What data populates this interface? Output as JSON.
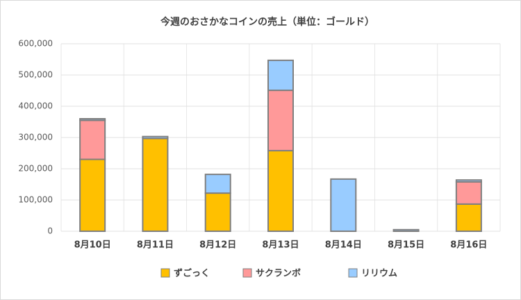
{
  "chart_data": {
    "type": "bar",
    "stacked": true,
    "title": "今週のおさかなコインの売上（単位：ゴールド）",
    "categories": [
      "8月10日",
      "8月11日",
      "8月12日",
      "8月13日",
      "8月14日",
      "8月15日",
      "8月16日"
    ],
    "series": [
      {
        "name": "ずごっく",
        "color": "#FFC000",
        "values": [
          230000,
          297000,
          122000,
          258000,
          0,
          0,
          87000
        ]
      },
      {
        "name": "サクランボ",
        "color": "#FF9999",
        "values": [
          125000,
          0,
          0,
          193000,
          0,
          0,
          71000
        ]
      },
      {
        "name": "リリウム",
        "color": "#99CCFF",
        "values": [
          5000,
          6000,
          60000,
          96000,
          167000,
          5000,
          6000
        ]
      }
    ],
    "ylim": [
      0,
      600000
    ],
    "yticks": [
      0,
      {
        "value": 100000,
        "label": "100,000"
      },
      {
        "value": 200000,
        "label": "200,000"
      },
      {
        "value": 300000,
        "label": "300,000"
      },
      {
        "value": 400000,
        "label": "400,000"
      },
      {
        "value": 500000,
        "label": "500,000"
      },
      {
        "value": 600000,
        "label": "600,000"
      }
    ],
    "grid": true,
    "legend": "bottom"
  }
}
